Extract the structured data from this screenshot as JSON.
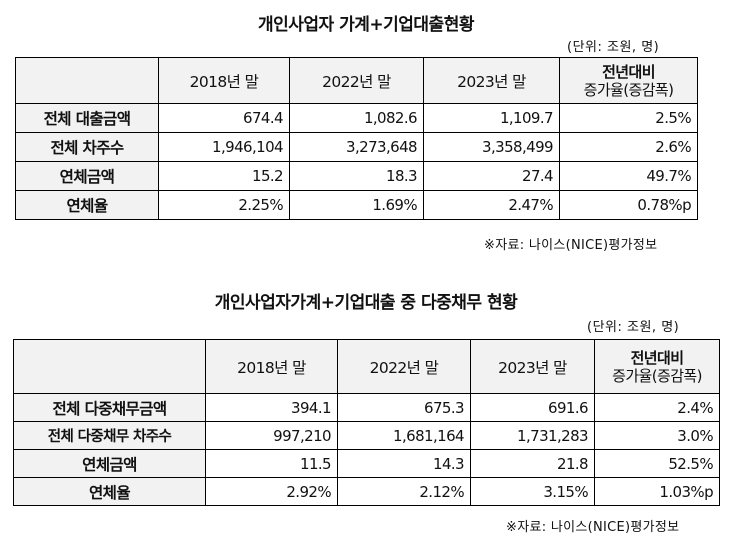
{
  "table1": {
    "title": "개인사업자 가계+기업대출현황",
    "unit": "(단위: 조원, 명)",
    "headers": [
      "2018년 말",
      "2022년 말",
      "2023년 말"
    ],
    "change_header_1": "전년대비",
    "change_header_2": "증가율(증감폭)",
    "rows": [
      {
        "label": "전체 대출금액",
        "v2018": "674.4",
        "v2022": "1,082.6",
        "v2023": "1,109.7",
        "change": "2.5%"
      },
      {
        "label": "전체 차주수",
        "v2018": "1,946,104",
        "v2022": "3,273,648",
        "v2023": "3,358,499",
        "change": "2.6%"
      },
      {
        "label": "연체금액",
        "v2018": "15.2",
        "v2022": "18.3",
        "v2023": "27.4",
        "change": "49.7%"
      },
      {
        "label": "연체율",
        "v2018": "2.25%",
        "v2022": "1.69%",
        "v2023": "2.47%",
        "change": "0.78%p"
      }
    ],
    "source": "※자료: 나이스(NICE)평가정보"
  },
  "table2": {
    "title": "개인사업자가계+기업대출 중 다중채무 현황",
    "unit": "(단위: 조원, 명)",
    "headers": [
      "2018년 말",
      "2022년 말",
      "2023년 말"
    ],
    "change_header_1": "전년대비",
    "change_header_2": "증가율(증감폭)",
    "rows": [
      {
        "label": "전체 다중채무금액",
        "v2018": "394.1",
        "v2022": "675.3",
        "v2023": "691.6",
        "change": "2.4%"
      },
      {
        "label": "전체 다중채무 차주수",
        "v2018": "997,210",
        "v2022": "1,681,164",
        "v2023": "1,731,283",
        "change": "3.0%"
      },
      {
        "label": "연체금액",
        "v2018": "11.5",
        "v2022": "14.3",
        "v2023": "21.8",
        "change": "52.5%"
      },
      {
        "label": "연체율",
        "v2018": "2.92%",
        "v2022": "2.12%",
        "v2023": "3.15%",
        "change": "1.03%p"
      }
    ],
    "source": "※자료: 나이스(NICE)평가정보"
  }
}
